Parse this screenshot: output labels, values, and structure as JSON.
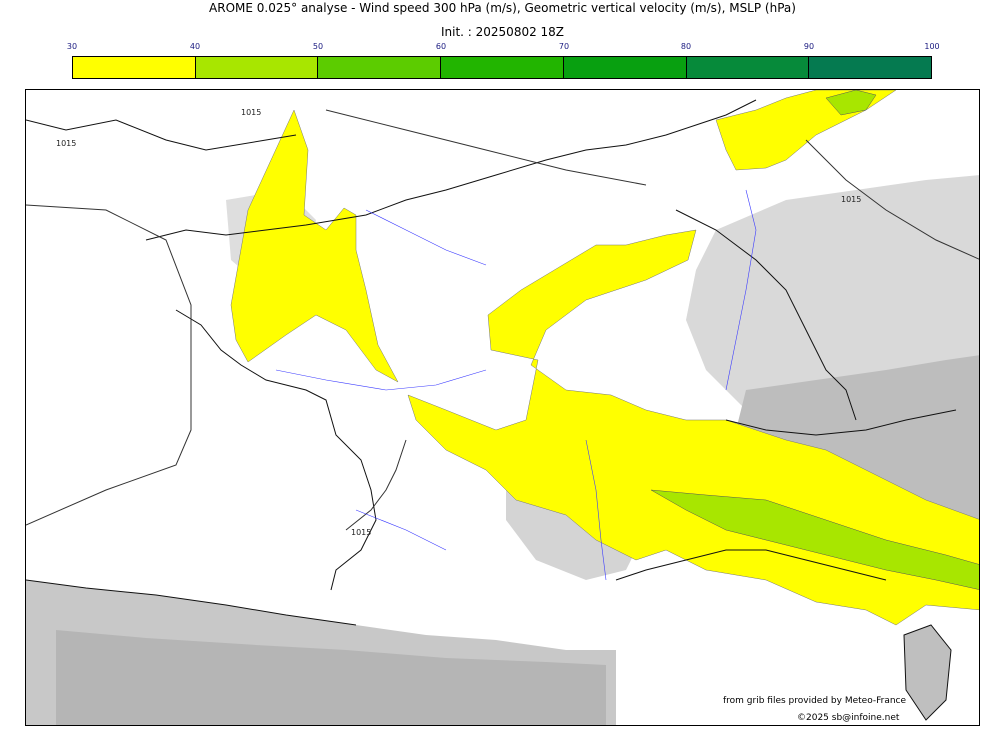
{
  "header": {
    "title": "AROME 0.025° analyse - Wind speed 300 hPa (m/s), Geometric vertical velocity (m/s), MSLP (hPa)",
    "init": "Init. : 20250802 18Z"
  },
  "colorbar": {
    "ticks": [
      "30",
      "40",
      "50",
      "60",
      "70",
      "80",
      "90",
      "100"
    ],
    "colors": [
      "#ffff00",
      "#a8e600",
      "#5ccc00",
      "#22b500",
      "#08a010",
      "#068a3a",
      "#057a50"
    ]
  },
  "map": {
    "isobar_labels": [
      "1015",
      "1015",
      "1015",
      "1015"
    ],
    "fill_colors": {
      "wind_30_40": "#ffff00",
      "wind_40_50": "#a8e600",
      "terrain": "#cfcfcf"
    }
  },
  "credits": {
    "source": "from grib files provided by Meteo-France",
    "copyright": "©2025 sb@infoine.net"
  }
}
